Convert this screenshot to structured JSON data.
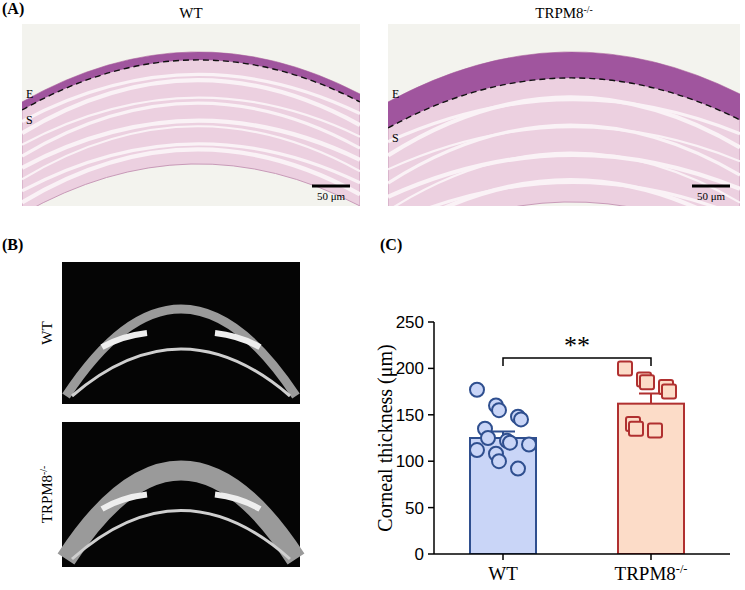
{
  "panels": {
    "a": {
      "label": "(A)",
      "titles": [
        "WT",
        "TRPM8-/-"
      ],
      "layer_labels": [
        "E",
        "S"
      ],
      "scale_bar": "50 μm"
    },
    "b": {
      "label": "(B)",
      "titles": [
        "WT",
        "TRPM8-/-"
      ]
    },
    "c": {
      "label": "(C)"
    }
  },
  "chart_data": {
    "type": "bar",
    "categories": [
      "WT",
      "TRPM8-/-"
    ],
    "values": [
      125,
      162
    ],
    "errors": [
      7,
      11
    ],
    "points": [
      [
        177,
        160,
        155,
        148,
        145,
        135,
        125,
        122,
        120,
        118,
        112,
        108,
        100,
        92
      ],
      [
        200,
        188,
        185,
        180,
        175,
        140,
        135,
        133
      ]
    ],
    "colors": [
      "#c9d5f7",
      "#fcdcc8"
    ],
    "ylabel": "Corneal thickness (μm)",
    "ylim": [
      0,
      250
    ],
    "yticks": [
      0,
      50,
      100,
      150,
      200,
      250
    ],
    "significance": "**"
  }
}
